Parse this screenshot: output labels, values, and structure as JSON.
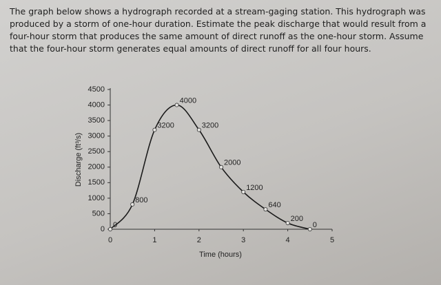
{
  "problem": {
    "lines": [
      "The graph below shows a hydrograph recorded at a stream-gaging station.  This hydrograph was",
      "produced by a storm of one-hour duration.  Estimate the peak discharge that would result from a",
      "four-hour storm that produces the same amount of direct runoff as the one-hour storm.  Assume",
      "that the four-hour storm generates equal amounts of direct runoff for all four hours."
    ]
  },
  "chart_data": {
    "type": "line",
    "x_label": "Time (hours)",
    "y_label": "Discharge (ft³/s)",
    "x": [
      0,
      0.5,
      1,
      1.5,
      2,
      2.5,
      3,
      3.5,
      4,
      4.5
    ],
    "values": [
      0,
      800,
      3200,
      4000,
      3200,
      2000,
      1200,
      640,
      200,
      0
    ],
    "color": "#1a1a1a",
    "xlim": [
      0,
      5
    ],
    "xticks": [
      0,
      1,
      2,
      3,
      4,
      5
    ],
    "ylim": [
      0,
      4500
    ],
    "yticks": [
      0,
      500,
      1000,
      1500,
      2000,
      2500,
      3000,
      3500,
      4000,
      4500
    ],
    "grid": false
  }
}
